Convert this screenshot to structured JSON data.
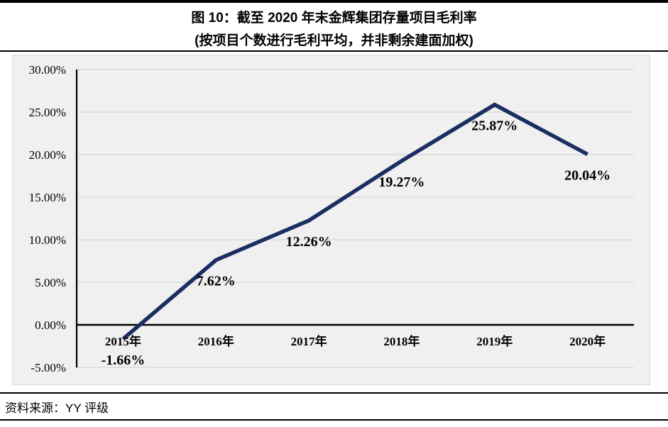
{
  "header": {
    "title": "图 10：截至 2020 年末金辉集团存量项目毛利率",
    "subtitle": "(按项目个数进行毛利平均，并非剩余建面加权)"
  },
  "source": {
    "label": "资料来源：YY 评级"
  },
  "colors": {
    "line": "#1b2e62",
    "panel_bg": "#f0f0f0",
    "gridline": "#d9d9d9",
    "zero_axis": "#000000",
    "y_axis": "#000000",
    "rule": "#000000",
    "text": "#000000"
  },
  "chart_data": {
    "type": "line",
    "title": "图 10：截至 2020 年末金辉集团存量项目毛利率",
    "subtitle": "(按项目个数进行毛利平均，并非剩余建面加权)",
    "categories": [
      "2015年",
      "2016年",
      "2017年",
      "2018年",
      "2019年",
      "2020年"
    ],
    "values": [
      -1.66,
      7.62,
      12.26,
      19.27,
      25.87,
      20.04
    ],
    "data_labels": [
      "-1.66%",
      "7.62%",
      "12.26%",
      "19.27%",
      "25.87%",
      "20.04%"
    ],
    "y_ticks": [
      30,
      25,
      20,
      15,
      10,
      5,
      0,
      -5
    ],
    "y_tick_labels": [
      "30.00%",
      "25.00%",
      "20.00%",
      "15.00%",
      "10.00%",
      "5.00%",
      "0.00%",
      "-5.00%"
    ],
    "ylim": [
      -5,
      30
    ],
    "xlabel": "",
    "ylabel": "",
    "grid": true,
    "legend": "none"
  }
}
